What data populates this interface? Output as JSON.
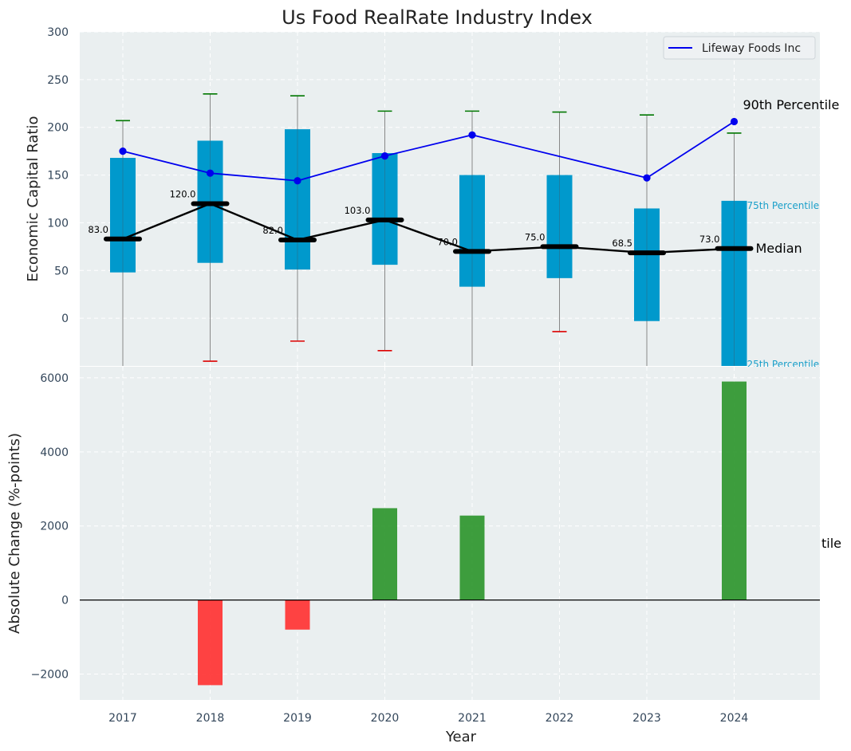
{
  "title": "Us Food RealRate Industry Index",
  "colors": {
    "panel_bg": "#eaeff0",
    "box": "#0099cc",
    "whisker": "#888888",
    "cap_top": "#007700",
    "cap_bottom": "#dd0000",
    "median": "#000000",
    "company": "#0000ee",
    "pos_bar": "#2e962e",
    "neg_bar": "#ff3333",
    "pct_label": "#1a9fc9"
  },
  "chart_data": [
    {
      "type": "box",
      "ylabel": "Economic Capital Ratio",
      "ylim": [
        -50,
        300
      ],
      "yticks": [
        0,
        50,
        100,
        150,
        200,
        250,
        300
      ],
      "grid": true,
      "legend": {
        "position": "top-right",
        "entries": [
          "Lifeway Foods Inc"
        ]
      },
      "categories": [
        "2017",
        "2018",
        "2019",
        "2020",
        "2021",
        "2022",
        "2023",
        "2024"
      ],
      "p25": [
        48,
        58,
        51,
        56,
        33,
        42,
        -3,
        -50
      ],
      "p75": [
        168,
        186,
        198,
        173,
        150,
        150,
        115,
        123
      ],
      "whisker_low": [
        null,
        -45,
        -24,
        -34,
        null,
        -14,
        null,
        null
      ],
      "whisker_high": [
        207,
        235,
        233,
        217,
        217,
        216,
        213,
        194
      ],
      "median": [
        83.0,
        120.0,
        82.0,
        103.0,
        70.0,
        75.0,
        68.5,
        73.0
      ],
      "median_labels": [
        "83.0",
        "120.0",
        "82.0",
        "103.0",
        "70.0",
        "75.0",
        "68.5",
        "73.0"
      ],
      "series": [
        {
          "name": "Lifeway Foods Inc",
          "values": [
            175,
            152,
            144,
            170,
            192,
            null,
            147,
            206
          ]
        }
      ],
      "annotations": {
        "p90": "90th Percentile",
        "p75": "75th Percentile",
        "median": "Median",
        "p25": "25th Percentile"
      }
    },
    {
      "type": "bar",
      "xlabel": "Year",
      "ylabel": "Absolute Change (%-points)",
      "ylim": [
        -2700,
        6300
      ],
      "yticks": [
        -2000,
        0,
        2000,
        4000,
        6000
      ],
      "ytick_labels": [
        "−2000",
        "0",
        "2000",
        "4000",
        "6000"
      ],
      "grid": true,
      "categories": [
        "2017",
        "2018",
        "2019",
        "2020",
        "2021",
        "2022",
        "2023",
        "2024"
      ],
      "values": [
        0,
        -2300,
        -800,
        2480,
        2280,
        0,
        0,
        5900
      ],
      "clipped_label": "tile"
    }
  ]
}
